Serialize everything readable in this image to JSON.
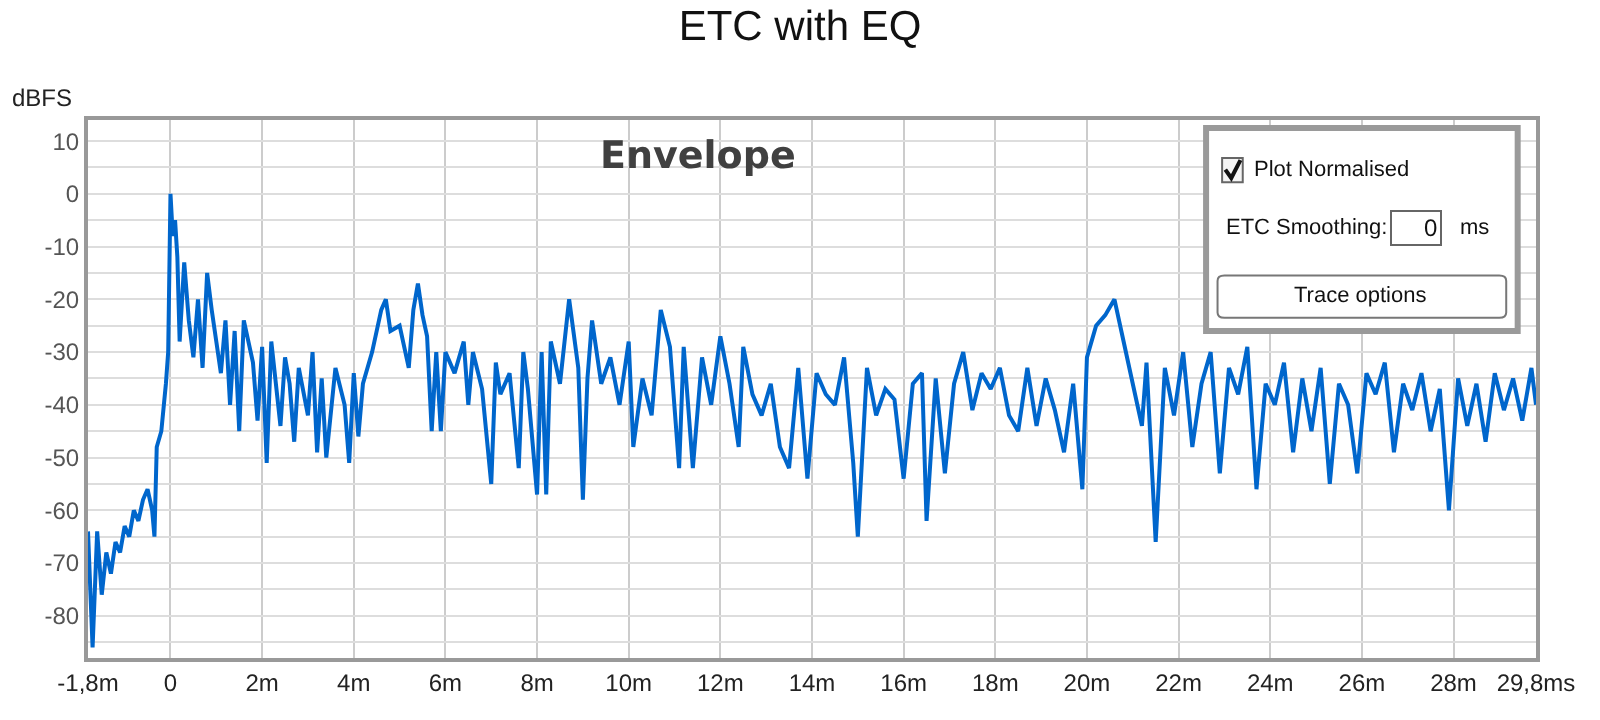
{
  "chart_data": {
    "type": "line",
    "title": "ETC with EQ",
    "ylabel": "dBFS",
    "annotations": [
      "Envelope",
      "Plot Normalised",
      "ETC Smoothing:",
      "0",
      "ms",
      "Trace options"
    ],
    "x": [
      -1.8,
      -1.7,
      -1.6,
      -1.5,
      -1.4,
      -1.3,
      -1.2,
      -1.1,
      -1.0,
      -0.9,
      -0.8,
      -0.7,
      -0.6,
      -0.5,
      -0.4,
      -0.35,
      -0.3,
      -0.2,
      -0.1,
      -0.05,
      0,
      0.05,
      0.1,
      0.15,
      0.2,
      0.3,
      0.4,
      0.5,
      0.6,
      0.7,
      0.8,
      0.9,
      1.0,
      1.1,
      1.2,
      1.3,
      1.4,
      1.5,
      1.6,
      1.8,
      1.9,
      2.0,
      2.1,
      2.2,
      2.4,
      2.5,
      2.6,
      2.7,
      2.8,
      3.0,
      3.1,
      3.2,
      3.3,
      3.4,
      3.6,
      3.8,
      3.9,
      4.0,
      4.1,
      4.2,
      4.4,
      4.6,
      4.7,
      4.8,
      5.0,
      5.2,
      5.3,
      5.4,
      5.5,
      5.6,
      5.7,
      5.8,
      5.9,
      6.0,
      6.2,
      6.4,
      6.5,
      6.6,
      6.8,
      7.0,
      7.1,
      7.2,
      7.4,
      7.6,
      7.7,
      7.8,
      8.0,
      8.1,
      8.2,
      8.3,
      8.5,
      8.7,
      8.9,
      9.0,
      9.1,
      9.2,
      9.4,
      9.6,
      9.8,
      10.0,
      10.1,
      10.3,
      10.5,
      10.6,
      10.7,
      10.9,
      11.1,
      11.2,
      11.4,
      11.6,
      11.8,
      12.0,
      12.2,
      12.4,
      12.5,
      12.7,
      12.9,
      13.1,
      13.3,
      13.5,
      13.7,
      13.9,
      14.1,
      14.3,
      14.5,
      14.7,
      14.9,
      15.0,
      15.2,
      15.4,
      15.6,
      15.8,
      16.0,
      16.2,
      16.4,
      16.5,
      16.7,
      16.9,
      17.1,
      17.3,
      17.5,
      17.7,
      17.9,
      18.1,
      18.3,
      18.5,
      18.7,
      18.9,
      19.1,
      19.3,
      19.5,
      19.7,
      19.9,
      20.0,
      20.2,
      20.4,
      20.6,
      20.8,
      21.0,
      21.2,
      21.3,
      21.5,
      21.7,
      21.9,
      22.1,
      22.3,
      22.5,
      22.7,
      22.9,
      23.1,
      23.3,
      23.5,
      23.7,
      23.9,
      24.1,
      24.3,
      24.5,
      24.7,
      24.9,
      25.1,
      25.3,
      25.5,
      25.7,
      25.9,
      26.1,
      26.3,
      26.5,
      26.7,
      26.9,
      27.1,
      27.3,
      27.5,
      27.7,
      27.9,
      28.1,
      28.3,
      28.5,
      28.7,
      28.9,
      29.1,
      29.3,
      29.5,
      29.7,
      29.8
    ],
    "series": [
      {
        "color": "#0066cc",
        "values": [
          -64,
          -86,
          -64,
          -76,
          -68,
          -72,
          -66,
          -68,
          -63,
          -65,
          -60,
          -62,
          -58,
          -56,
          -60,
          -65,
          -48,
          -45,
          -36,
          -30,
          0,
          -8,
          -5,
          -12,
          -28,
          -13,
          -24,
          -31,
          -20,
          -33,
          -15,
          -22,
          -28,
          -34,
          -24,
          -40,
          -26,
          -45,
          -24,
          -32,
          -43,
          -29,
          -51,
          -28,
          -44,
          -31,
          -36,
          -47,
          -33,
          -42,
          -30,
          -49,
          -35,
          -50,
          -33,
          -40,
          -51,
          -34,
          -46,
          -36,
          -30,
          -22,
          -20,
          -26,
          -25,
          -33,
          -22,
          -17,
          -23,
          -27,
          -45,
          -30,
          -45,
          -30,
          -34,
          -28,
          -40,
          -30,
          -37,
          -55,
          -32,
          -38,
          -34,
          -52,
          -30,
          -37,
          -57,
          -30,
          -57,
          -28,
          -36,
          -20,
          -33,
          -58,
          -35,
          -24,
          -36,
          -31,
          -40,
          -28,
          -48,
          -35,
          -42,
          -32,
          -22,
          -29,
          -52,
          -29,
          -52,
          -31,
          -40,
          -27,
          -36,
          -48,
          -29,
          -38,
          -42,
          -36,
          -48,
          -52,
          -33,
          -54,
          -34,
          -38,
          -40,
          -31,
          -51,
          -65,
          -33,
          -42,
          -37,
          -39,
          -54,
          -36,
          -34,
          -62,
          -35,
          -53,
          -36,
          -30,
          -41,
          -34,
          -37,
          -33,
          -42,
          -45,
          -33,
          -44,
          -35,
          -41,
          -49,
          -36,
          -56,
          -31,
          -25,
          -23,
          -20,
          -28,
          -36,
          -44,
          -32,
          -66,
          -33,
          -42,
          -30,
          -48,
          -36,
          -30,
          -53,
          -33,
          -38,
          -29,
          -56,
          -36,
          -40,
          -32,
          -49,
          -35,
          -45,
          -33,
          -55,
          -36,
          -40,
          -53,
          -34,
          -38,
          -32,
          -49,
          -36,
          -41,
          -34,
          -45,
          -37,
          -60,
          -35,
          -44,
          -36,
          -47,
          -34,
          -41,
          -35,
          -43,
          -33,
          -40
        ]
      }
    ],
    "xlim": [
      -1.8,
      29.8
    ],
    "xticks": [
      {
        "value": -1.8,
        "label": "-1,8m"
      },
      0,
      {
        "value": 2,
        "label": "2m"
      },
      {
        "value": 4,
        "label": "4m"
      },
      {
        "value": 6,
        "label": "6m"
      },
      {
        "value": 8,
        "label": "8m"
      },
      {
        "value": 10,
        "label": "10m"
      },
      {
        "value": 12,
        "label": "12m"
      },
      {
        "value": 14,
        "label": "14m"
      },
      {
        "value": 16,
        "label": "16m"
      },
      {
        "value": 18,
        "label": "18m"
      },
      {
        "value": 20,
        "label": "20m"
      },
      {
        "value": 22,
        "label": "22m"
      },
      {
        "value": 24,
        "label": "24m"
      },
      {
        "value": 26,
        "label": "26m"
      },
      {
        "value": 28,
        "label": "28m"
      },
      {
        "value": 29.8,
        "label": "29,8ms"
      }
    ],
    "ylim": [
      -88,
      14
    ],
    "yticks": [
      10,
      {
        "value": 5,
        "label": null
      },
      0,
      {
        "value": -5,
        "label": null
      },
      -10,
      {
        "value": -15,
        "label": null
      },
      -20,
      {
        "value": -25,
        "label": null
      },
      -30,
      {
        "value": -35,
        "label": null
      },
      -40,
      {
        "value": -45,
        "label": null
      },
      -50,
      {
        "value": -55,
        "label": null
      },
      -60,
      {
        "value": -65,
        "label": null
      },
      -70,
      {
        "value": -75,
        "label": null
      },
      -80,
      {
        "value": -85,
        "label": null
      }
    ],
    "grid": true,
    "marker": "none",
    "line_style": "solid"
  }
}
